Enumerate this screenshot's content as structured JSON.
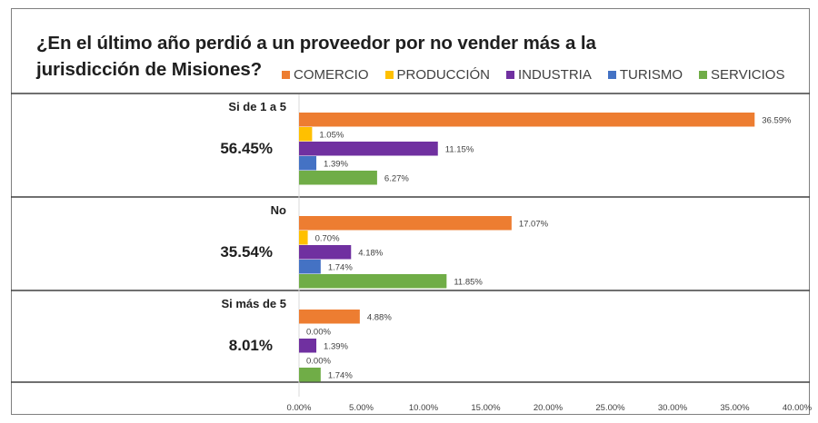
{
  "chart_data": {
    "type": "bar",
    "orientation": "horizontal",
    "title": "¿En el último año perdió a un proveedor por no vender más a la jurisdicción de Misiones?",
    "title_lines": [
      "¿En el último año perdió a un proveedor por no vender más a la",
      "jurisdicción de Misiones?"
    ],
    "xlabel": "",
    "ylabel": "",
    "xlim": [
      0,
      40
    ],
    "x_ticks": [
      0,
      5,
      10,
      15,
      20,
      25,
      30,
      35,
      40
    ],
    "x_tick_labels": [
      "0.00%",
      "5.00%",
      "10.00%",
      "15.00%",
      "20.00%",
      "25.00%",
      "30.00%",
      "35.00%",
      "40.00%"
    ],
    "value_format": "percent",
    "grid": false,
    "legend_position": "top-right",
    "categories": [
      "Si de 1 a 5",
      "No",
      "Si más de 5"
    ],
    "category_totals": [
      "56.45%",
      "35.54%",
      "8.01%"
    ],
    "series": [
      {
        "name": "COMERCIO",
        "color": "#ED7D31",
        "values": [
          36.59,
          17.07,
          4.88
        ],
        "labels": [
          "36.59%",
          "17.07%",
          "4.88%"
        ]
      },
      {
        "name": "PRODUCCIÓN",
        "color": "#FFC000",
        "values": [
          1.05,
          0.7,
          0.0
        ],
        "labels": [
          "1.05%",
          "0.70%",
          "0.00%"
        ]
      },
      {
        "name": "INDUSTRIA",
        "color": "#7030A0",
        "values": [
          11.15,
          4.18,
          1.39
        ],
        "labels": [
          "11.15%",
          "4.18%",
          "1.39%"
        ]
      },
      {
        "name": "TURISMO",
        "color": "#4472C4",
        "values": [
          1.39,
          1.74,
          0.0
        ],
        "labels": [
          "1.39%",
          "1.74%",
          "0.00%"
        ]
      },
      {
        "name": "SERVICIOS",
        "color": "#70AD47",
        "values": [
          6.27,
          11.85,
          1.74
        ],
        "labels": [
          "6.27%",
          "11.85%",
          "1.74%"
        ]
      }
    ]
  }
}
